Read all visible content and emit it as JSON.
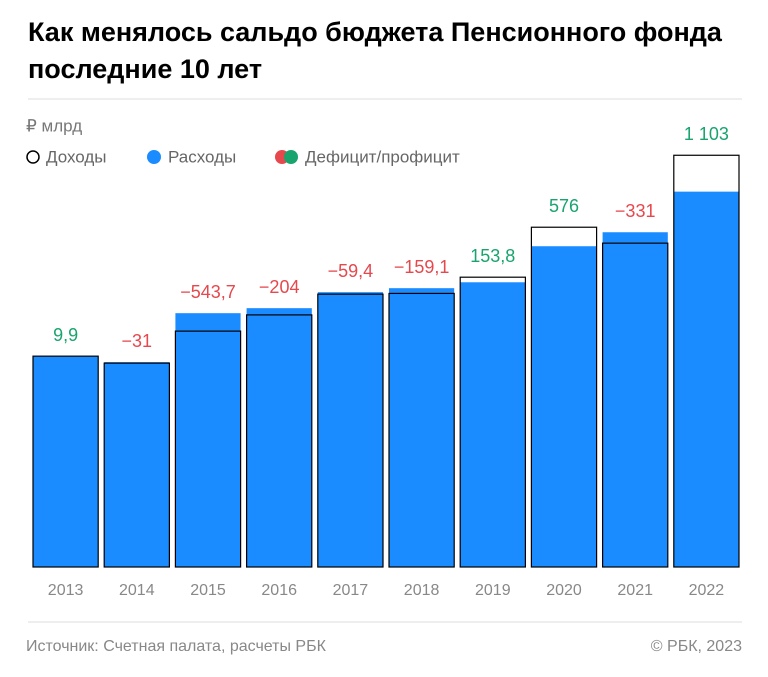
{
  "chart_data": {
    "type": "bar",
    "title": "Как менялось сальдо бюджета Пенсионного фонда последние 10 лет",
    "subtitle": "₽ млрд",
    "categories": [
      "2013",
      "2014",
      "2015",
      "2016",
      "2017",
      "2018",
      "2019",
      "2020",
      "2021",
      "2022"
    ],
    "series": [
      {
        "name": "Доходы",
        "color": "#000000",
        "values": [
          6393,
          6181,
          7152,
          7644,
          8273,
          8295,
          8787,
          10302,
          9819,
          12484
        ]
      },
      {
        "name": "Расходы",
        "color": "#1a8cff",
        "values": [
          6383,
          6212,
          7696,
          7848,
          8333,
          8454,
          8633,
          9726,
          10150,
          11381
        ]
      },
      {
        "name": "Дефицит/профицит",
        "negative_color": "#e5484d",
        "positive_color": "#19a46e",
        "values": [
          9.9,
          -31,
          -543.7,
          -204,
          -59.4,
          -159.1,
          153.8,
          576,
          -331,
          1103
        ],
        "value_labels": [
          "9,9",
          "−31",
          "−543,7",
          "−204",
          "−59,4",
          "−159,1",
          "153,8",
          "576",
          "−331",
          "1 103"
        ]
      }
    ],
    "ylim": [
      0,
      13250
    ],
    "source": "Источник: Счетная палата, расчеты РБК",
    "copyright": "© РБК, 2023"
  }
}
